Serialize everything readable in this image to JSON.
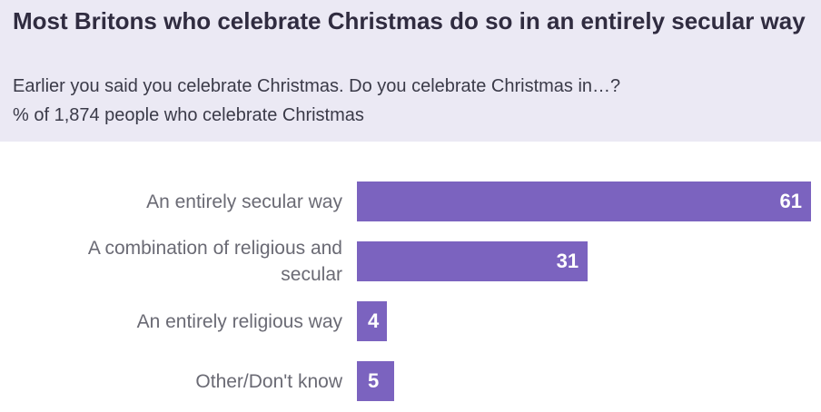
{
  "header": {
    "title": "Most Britons who celebrate Christmas do so in an entirely secular way",
    "question": "Earlier you said you celebrate Christmas. Do you celebrate Christmas in…?",
    "base": "% of 1,874 people who celebrate Christmas"
  },
  "colors": {
    "bar": "#7b63bf",
    "header_bg": "#ebe9f4"
  },
  "chart_data": {
    "type": "bar",
    "orientation": "horizontal",
    "title": "Most Britons who celebrate Christmas do so in an entirely secular way",
    "categories": [
      "An entirely secular way",
      "A combination of religious and secular",
      "An entirely religious way",
      "Other/Don't know"
    ],
    "values": [
      61,
      31,
      4,
      5
    ],
    "value_labels": [
      "61",
      "31",
      "4",
      "5"
    ],
    "xlim": [
      0,
      61
    ],
    "grid": false
  }
}
